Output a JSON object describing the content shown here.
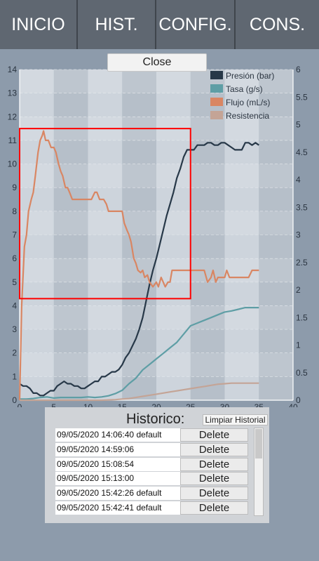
{
  "nav": {
    "items": [
      {
        "label": "INICIO"
      },
      {
        "label": "HIST."
      },
      {
        "label": "CONFIG."
      },
      {
        "label": "CONS."
      }
    ]
  },
  "close_label": "Close",
  "history": {
    "title": "Historico:",
    "clear_label": "Limpiar Historial",
    "rows": [
      {
        "date": "09/05/2020 14:06:40 default",
        "delete_label": "Delete"
      },
      {
        "date": "09/05/2020 14:59:06",
        "delete_label": "Delete"
      },
      {
        "date": "09/05/2020 15:08:54",
        "delete_label": "Delete"
      },
      {
        "date": "09/05/2020 15:13:00",
        "delete_label": "Delete"
      },
      {
        "date": "09/05/2020 15:42:26 default",
        "delete_label": "Delete"
      },
      {
        "date": "09/05/2020 15:42:41 default",
        "delete_label": "Delete"
      }
    ]
  },
  "chart_data": {
    "type": "line",
    "xlim": [
      0,
      40
    ],
    "ylim_left": [
      0,
      14
    ],
    "ylim_right": [
      0,
      6
    ],
    "x_ticks": [
      "0",
      "5",
      "10",
      "15",
      "20",
      "25",
      "30",
      "35",
      "40"
    ],
    "y_left_ticks": [
      "0",
      "1",
      "2",
      "3",
      "4",
      "5",
      "6",
      "7",
      "8",
      "9",
      "10",
      "11",
      "12",
      "13",
      "14"
    ],
    "y_right_ticks": [
      "0",
      "0.5",
      "1",
      "1.5",
      "2",
      "2.5",
      "3",
      "3.5",
      "4",
      "4.5",
      "5",
      "5.5",
      "6"
    ],
    "grid": true,
    "legend_position": "top-right",
    "highlight": {
      "x0": 0,
      "x1": 25,
      "y0": 4.3,
      "y1": 11.5,
      "color": "#ff0000"
    },
    "series": [
      {
        "name": "Presión (bar)",
        "color": "#273848",
        "axis": "left",
        "x": [
          0,
          0.5,
          1,
          1.5,
          2,
          2.5,
          3,
          3.5,
          4,
          4.5,
          5,
          5.5,
          6,
          6.5,
          7,
          7.5,
          8,
          8.5,
          9,
          9.5,
          10,
          10.5,
          11,
          11.5,
          12,
          12.5,
          13,
          13.5,
          14,
          14.5,
          15,
          15.5,
          16,
          16.5,
          17,
          17.5,
          18,
          18.5,
          19,
          19.5,
          20,
          20.5,
          21,
          21.5,
          22,
          22.5,
          23,
          23.5,
          24,
          24.5,
          25,
          25.5,
          26,
          26.5,
          27,
          27.5,
          28,
          28.5,
          29,
          29.5,
          30,
          30.5,
          31,
          31.5,
          32,
          32.5,
          33,
          33.5,
          34,
          34.5,
          35
        ],
        "values": [
          0.7,
          0.6,
          0.6,
          0.5,
          0.3,
          0.3,
          0.2,
          0.2,
          0.3,
          0.4,
          0.4,
          0.6,
          0.7,
          0.8,
          0.7,
          0.7,
          0.6,
          0.6,
          0.5,
          0.5,
          0.6,
          0.7,
          0.8,
          0.8,
          1.0,
          1.0,
          1.1,
          1.2,
          1.2,
          1.3,
          1.5,
          1.8,
          2.0,
          2.3,
          2.6,
          3.0,
          3.5,
          4.2,
          4.9,
          5.5,
          6.0,
          6.6,
          7.2,
          7.8,
          8.3,
          8.8,
          9.4,
          9.8,
          10.3,
          10.6,
          10.6,
          10.6,
          10.8,
          10.8,
          10.8,
          10.9,
          10.9,
          10.8,
          10.8,
          10.9,
          10.9,
          10.8,
          10.7,
          10.6,
          10.6,
          10.6,
          10.9,
          10.9,
          10.8,
          10.9,
          10.8
        ]
      },
      {
        "name": "Tasa (g/s)",
        "color": "#5e9ea5",
        "axis": "right",
        "x": [
          0,
          1,
          2,
          3,
          4,
          5,
          6,
          7,
          8,
          9,
          10,
          11,
          12,
          13,
          14,
          15,
          16,
          17,
          18,
          19,
          20,
          21,
          22,
          23,
          24,
          25,
          26,
          27,
          28,
          29,
          30,
          31,
          32,
          33,
          34,
          35
        ],
        "values": [
          0.02,
          0.02,
          0.03,
          0.05,
          0.06,
          0.04,
          0.05,
          0.05,
          0.05,
          0.05,
          0.06,
          0.05,
          0.06,
          0.08,
          0.12,
          0.18,
          0.3,
          0.4,
          0.55,
          0.65,
          0.75,
          0.85,
          0.95,
          1.05,
          1.2,
          1.35,
          1.4,
          1.45,
          1.5,
          1.55,
          1.6,
          1.62,
          1.65,
          1.68,
          1.68,
          1.68
        ]
      },
      {
        "name": "Flujo (mL/s)",
        "color": "#d98663",
        "axis": "left",
        "x": [
          0,
          0.3,
          0.7,
          1,
          1.3,
          1.7,
          2,
          2.3,
          2.7,
          3,
          3.3,
          3.5,
          3.8,
          4.2,
          4.6,
          5,
          5.3,
          5.7,
          6,
          6.3,
          6.7,
          7,
          7.3,
          7.7,
          8,
          8.3,
          8.7,
          9,
          9.5,
          10,
          10.5,
          11,
          11.3,
          11.7,
          12,
          12.3,
          12.7,
          13,
          13.5,
          14,
          14.5,
          15,
          15.3,
          15.7,
          16,
          16.3,
          16.7,
          17,
          17.3,
          17.7,
          18,
          18.3,
          18.7,
          19,
          19.5,
          20,
          20.3,
          20.7,
          21,
          21.3,
          21.7,
          22,
          22.3,
          22.7,
          23,
          23.3,
          23.7,
          24,
          24.3,
          25,
          26,
          27,
          27.5,
          28,
          28.3,
          28.7,
          29,
          29.5,
          30,
          30.3,
          30.7,
          31,
          31.5,
          32,
          32.5,
          33,
          33.5,
          34,
          34.5,
          35
        ],
        "values": [
          0,
          4,
          6.5,
          7,
          8,
          8.5,
          8.8,
          9.5,
          10.5,
          11,
          11.2,
          11.4,
          11.0,
          11.0,
          10.7,
          10.7,
          10.5,
          10.0,
          9.7,
          9.5,
          9.0,
          9.0,
          8.8,
          8.5,
          8.5,
          8.5,
          8.5,
          8.5,
          8.5,
          8.5,
          8.5,
          8.8,
          8.8,
          8.5,
          8.5,
          8.5,
          8.3,
          8.0,
          8.0,
          8.0,
          8.0,
          8.0,
          7.5,
          7.2,
          7.0,
          6.7,
          6.0,
          5.8,
          5.5,
          5.4,
          5.5,
          5.2,
          5.3,
          5.0,
          4.8,
          5.0,
          4.8,
          5.2,
          5.0,
          4.8,
          5.0,
          5.0,
          5.5,
          5.5,
          5.5,
          5.5,
          5.5,
          5.5,
          5.5,
          5.5,
          5.5,
          5.5,
          5.0,
          5.2,
          5.5,
          5.0,
          5.2,
          5.2,
          5.2,
          5.5,
          5.2,
          5.2,
          5.2,
          5.2,
          5.2,
          5.2,
          5.2,
          5.5,
          5.5,
          5.5
        ]
      },
      {
        "name": "Resistencia",
        "color": "#c4a496",
        "axis": "right",
        "x": [
          0,
          2,
          4,
          6,
          8,
          10,
          12,
          14,
          15,
          16,
          17,
          18,
          19,
          20,
          21,
          22,
          23,
          24,
          25,
          26,
          27,
          28,
          29,
          30,
          31,
          32,
          33,
          34,
          35
        ],
        "values": [
          0,
          0,
          0,
          0,
          0,
          0,
          0,
          0.01,
          0.02,
          0.03,
          0.05,
          0.07,
          0.09,
          0.11,
          0.13,
          0.15,
          0.17,
          0.19,
          0.21,
          0.23,
          0.25,
          0.27,
          0.29,
          0.3,
          0.31,
          0.31,
          0.31,
          0.31,
          0.31
        ]
      }
    ]
  }
}
